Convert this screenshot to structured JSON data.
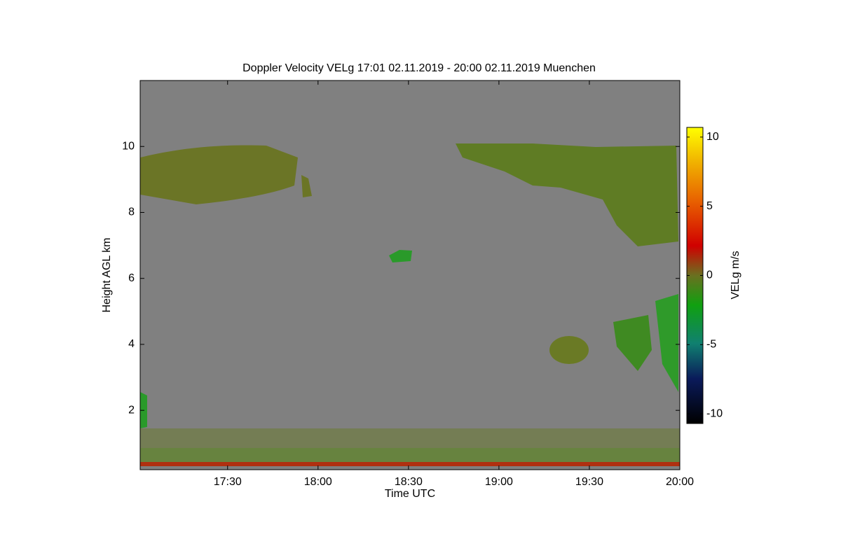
{
  "chart_data": {
    "type": "heatmap",
    "title": "Doppler Velocity VELg   17:01 02.11.2019 - 20:00 02.11.2019 Muenchen",
    "x_label": "Time UTC",
    "y_label": "Height AGL km",
    "colorbar_label": "VELg m/s",
    "xlim": [
      1021,
      1200
    ],
    "xticks": [
      {
        "value": 1050,
        "label": "17:30"
      },
      {
        "value": 1080,
        "label": "18:00"
      },
      {
        "value": 1110,
        "label": "18:30"
      },
      {
        "value": 1140,
        "label": "19:00"
      },
      {
        "value": 1170,
        "label": "19:30"
      },
      {
        "value": 1200,
        "label": "20:00"
      }
    ],
    "ylim": [
      0.2,
      12
    ],
    "yticks": [
      2,
      4,
      6,
      8,
      10
    ],
    "clim": [
      -10.7,
      10.7
    ],
    "cticks": [
      -10,
      -5,
      0,
      5,
      10
    ],
    "background": "#808080"
  }
}
